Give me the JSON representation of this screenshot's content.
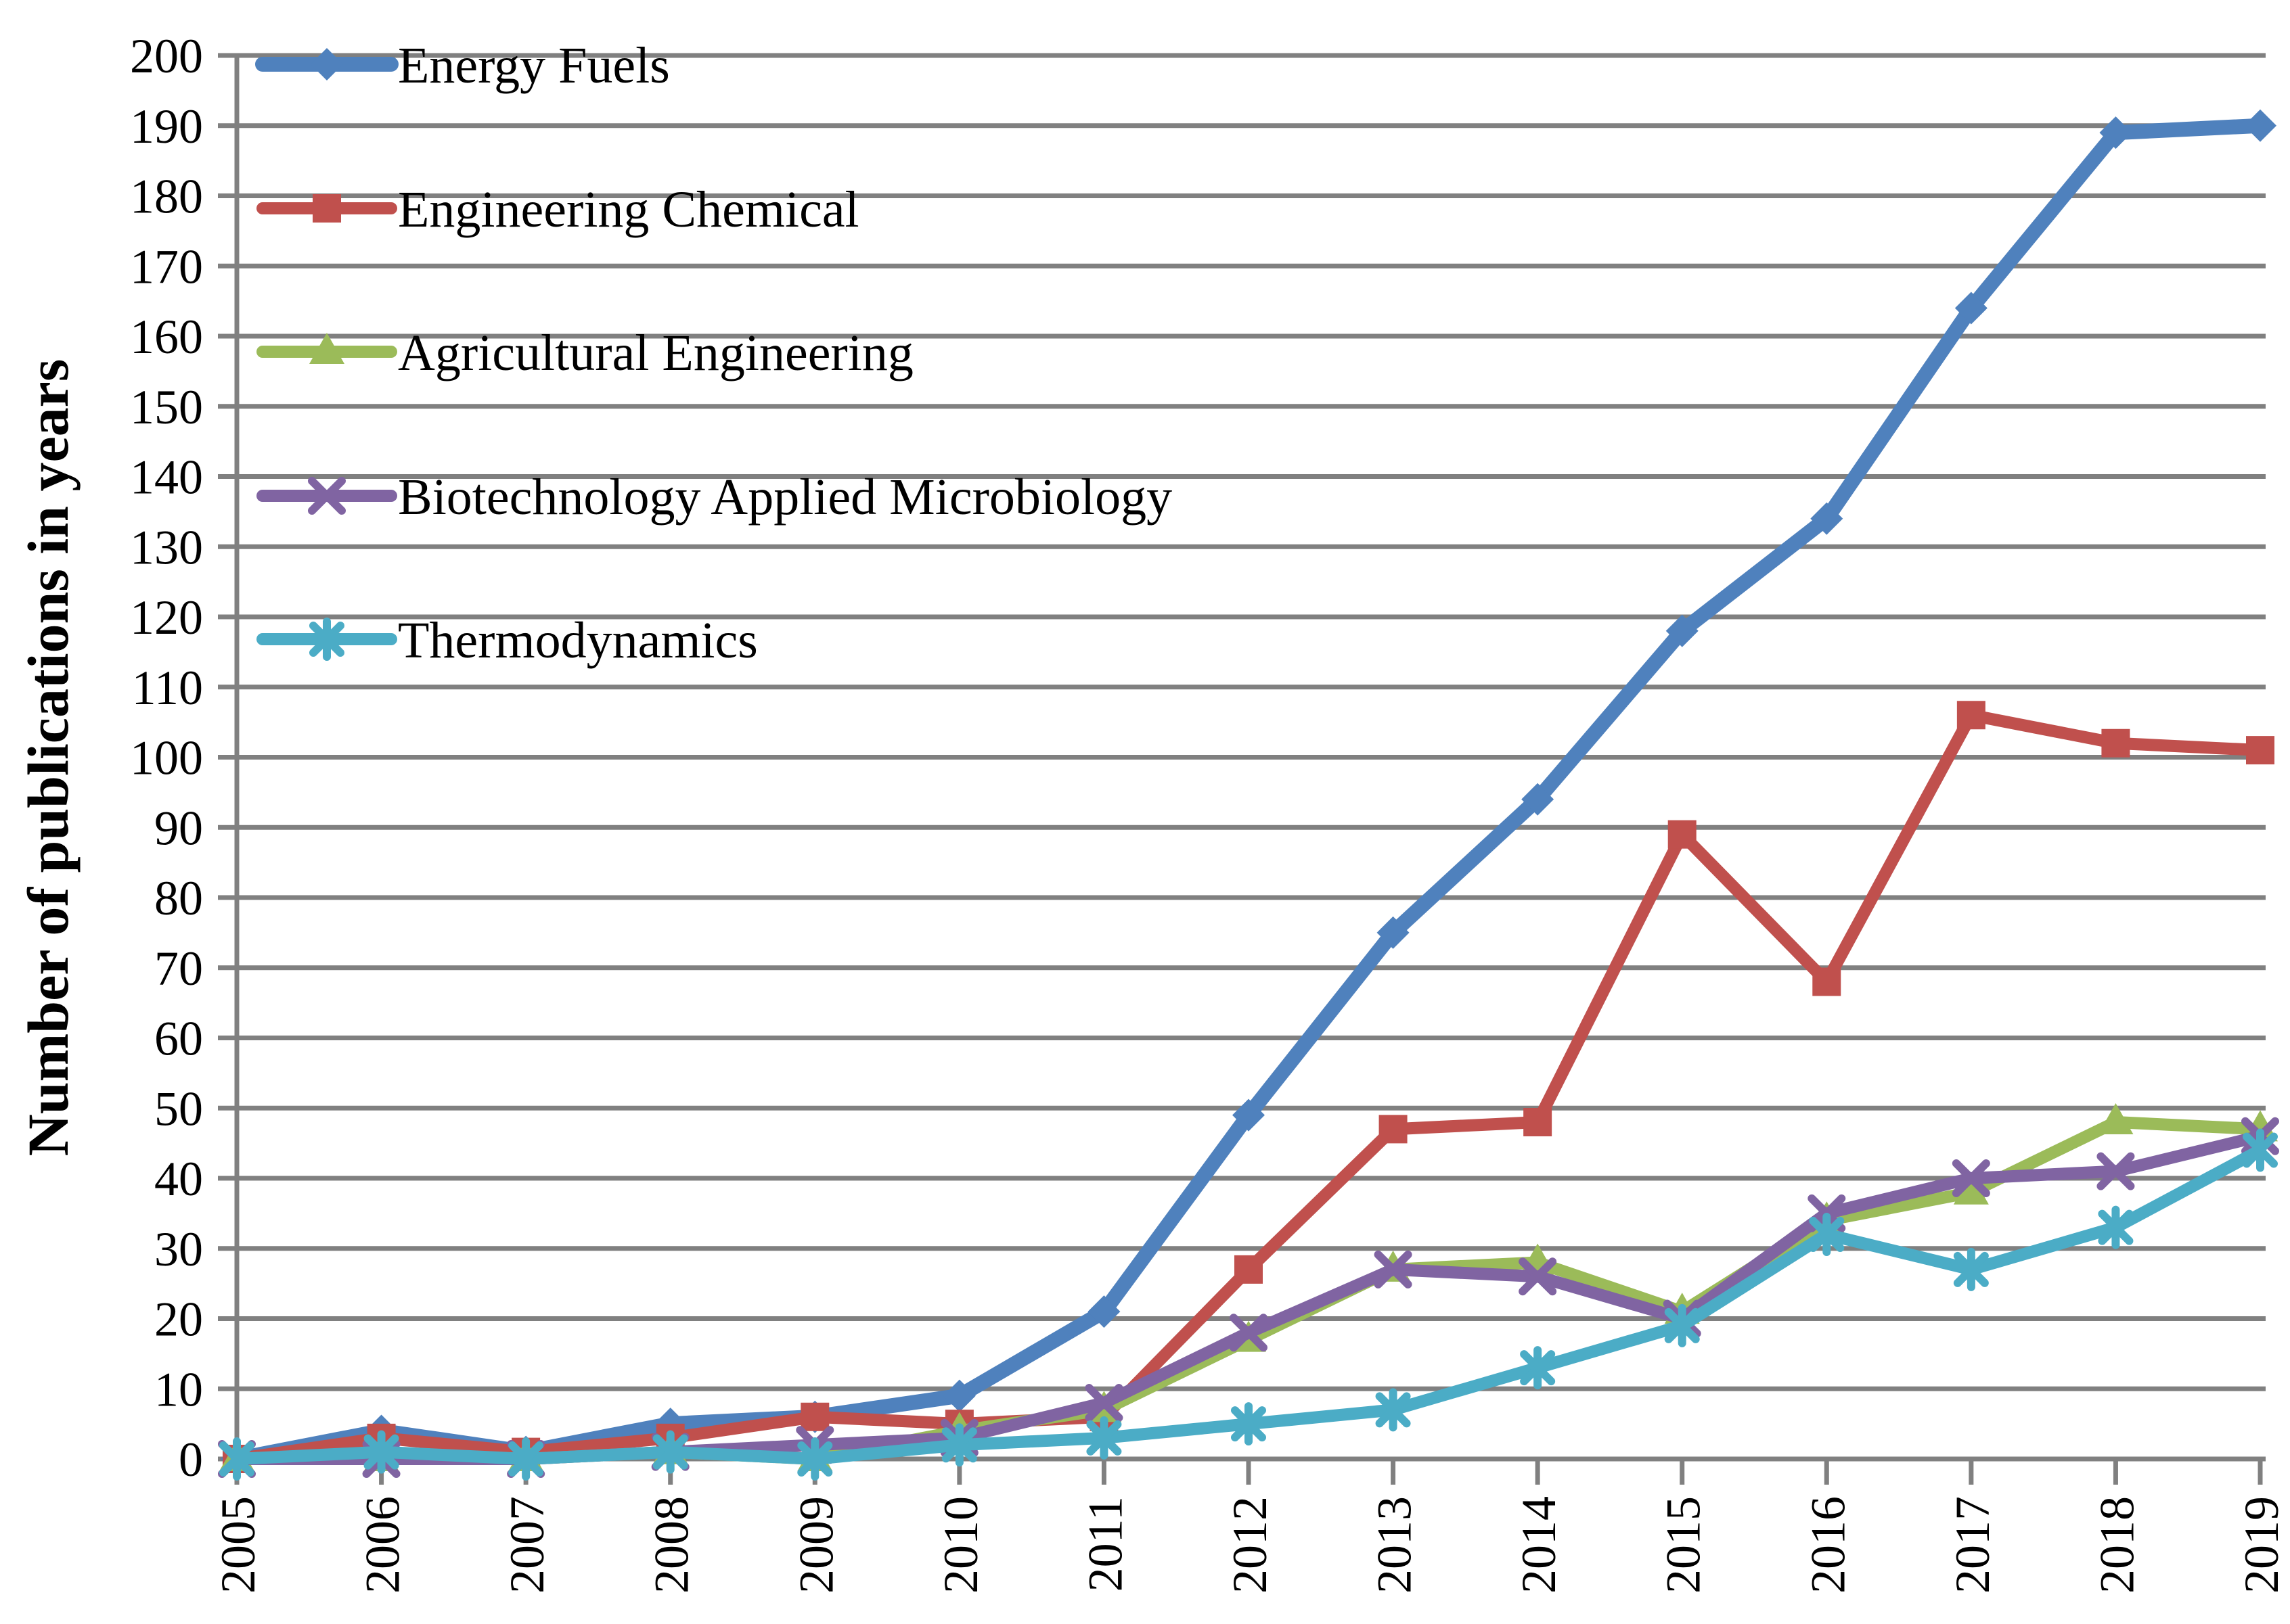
{
  "chart_data": {
    "type": "line",
    "title": "",
    "xlabel": "",
    "ylabel": "Number of publications in years",
    "ylim": [
      0,
      200
    ],
    "ytick_step": 10,
    "y_ticks": [
      0,
      10,
      20,
      30,
      40,
      50,
      60,
      70,
      80,
      90,
      100,
      110,
      120,
      130,
      140,
      150,
      160,
      170,
      180,
      190,
      200
    ],
    "grid": "horizontal",
    "legend_position": "top-left-inside",
    "axis_color": "#808080",
    "categories": [
      "2005",
      "2006",
      "2007",
      "2008",
      "2009",
      "2010",
      "2011",
      "2012",
      "2013",
      "2014",
      "2015",
      "2016",
      "2017",
      "2018",
      "2019"
    ],
    "series": [
      {
        "name": "Energy Fuels",
        "color": "#4F81BD",
        "marker": "diamond",
        "values": [
          0,
          4,
          1,
          5,
          6,
          9,
          21,
          49,
          75,
          94,
          118,
          134,
          164,
          189,
          190
        ]
      },
      {
        "name": "Engineering Chemical",
        "color": "#C0504D",
        "marker": "square",
        "values": [
          0,
          3,
          1,
          3,
          6,
          5,
          6,
          27,
          47,
          48,
          89,
          68,
          106,
          102,
          101
        ]
      },
      {
        "name": "Agricultural Engineering",
        "color": "#9BBB59",
        "marker": "triangle",
        "values": [
          0,
          0,
          0,
          1,
          0,
          4,
          7,
          17,
          27,
          28,
          21,
          34,
          38,
          48,
          47
        ]
      },
      {
        "name": "Biotechnology Applied Microbiology",
        "color": "#8064A2",
        "marker": "x",
        "values": [
          0,
          0,
          0,
          1,
          2,
          3,
          8,
          18,
          27,
          26,
          20,
          35,
          40,
          41,
          46
        ]
      },
      {
        "name": "Thermodynamics",
        "color": "#4BACC6",
        "marker": "asterisk",
        "values": [
          0,
          1,
          0,
          1,
          0,
          2,
          3,
          5,
          7,
          13,
          19,
          32,
          27,
          33,
          44
        ]
      }
    ]
  }
}
